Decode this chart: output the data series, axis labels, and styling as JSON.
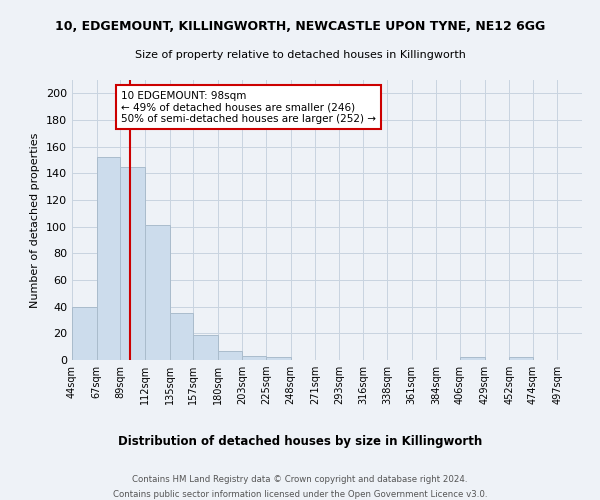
{
  "title": "10, EDGEMOUNT, KILLINGWORTH, NEWCASTLE UPON TYNE, NE12 6GG",
  "subtitle": "Size of property relative to detached houses in Killingworth",
  "xlabel": "Distribution of detached houses by size in Killingworth",
  "ylabel": "Number of detached properties",
  "bar_labels": [
    "44sqm",
    "67sqm",
    "89sqm",
    "112sqm",
    "135sqm",
    "157sqm",
    "180sqm",
    "203sqm",
    "225sqm",
    "248sqm",
    "271sqm",
    "293sqm",
    "316sqm",
    "338sqm",
    "361sqm",
    "384sqm",
    "406sqm",
    "429sqm",
    "452sqm",
    "474sqm",
    "497sqm"
  ],
  "bar_values": [
    40,
    152,
    145,
    101,
    35,
    19,
    7,
    3,
    2,
    0,
    0,
    0,
    0,
    0,
    0,
    0,
    2,
    0,
    2,
    0,
    0
  ],
  "bar_color": "#ccdcec",
  "bar_edge_color": "#aabccc",
  "vline_x_index": 2,
  "vline_color": "#cc0000",
  "annotation_line1": "10 EDGEMOUNT: 98sqm",
  "annotation_line2": "← 49% of detached houses are smaller (246)",
  "annotation_line3": "50% of semi-detached houses are larger (252) →",
  "annotation_box_color": "#cc0000",
  "ylim": [
    0,
    210
  ],
  "yticks": [
    0,
    20,
    40,
    60,
    80,
    100,
    120,
    140,
    160,
    180,
    200
  ],
  "footer_line1": "Contains HM Land Registry data © Crown copyright and database right 2024.",
  "footer_line2": "Contains public sector information licensed under the Open Government Licence v3.0.",
  "bg_color": "#eef2f7",
  "plot_bg_color": "#eef2f7",
  "grid_color": "#c8d4e0"
}
